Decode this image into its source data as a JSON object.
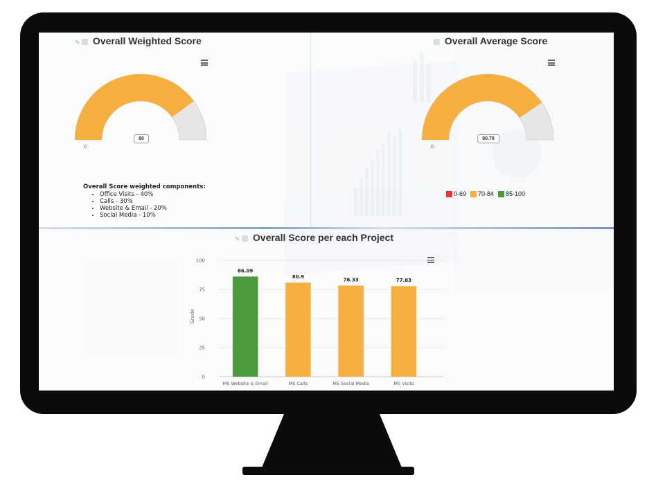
{
  "panels": {
    "weighted": {
      "title": "Overall Weighted Score",
      "gauge_min": "0",
      "gauge_value_label": "80",
      "gauge_value": 80,
      "gauge_max": 100,
      "components_title": "Overall Score weighted components:",
      "components": [
        "Office Visits - 40%",
        "Calls - 30%",
        "Website & Email - 20%",
        "Social Media - 10%"
      ]
    },
    "average": {
      "title": "Overall Average Score",
      "gauge_min": "0",
      "gauge_value_label": "80.79",
      "gauge_value": 80.79,
      "gauge_max": 100,
      "legend": [
        {
          "label": "0-69",
          "color": "#e8343f"
        },
        {
          "label": "70-84",
          "color": "#f4ae3d"
        },
        {
          "label": "85-100",
          "color": "#4c9a3a"
        }
      ]
    },
    "projects": {
      "title": "Overall Score per each Project"
    }
  },
  "colors": {
    "gauge_fill": "#f6b042",
    "gauge_track": "#e6e6e6",
    "bar_green": "#4c9a3a",
    "bar_orange": "#f6b042"
  },
  "icons": [
    "menu-icon",
    "chart-icon",
    "pencil-icon"
  ],
  "chart_data": {
    "type": "bar",
    "categories": [
      "MS Website & Email",
      "MS Calls",
      "MS Social Media",
      "MS Visits"
    ],
    "values": [
      86.09,
      80.9,
      78.33,
      77.83
    ],
    "value_labels": [
      "86.09",
      "80.9",
      "78.33",
      "77.83"
    ],
    "bar_colors": [
      "#4c9a3a",
      "#f6b042",
      "#f6b042",
      "#f6b042"
    ],
    "ylabel": "Grade",
    "yticks": [
      "0",
      "25",
      "50",
      "75",
      "100"
    ],
    "ylim": [
      0,
      100
    ],
    "grid": true
  }
}
